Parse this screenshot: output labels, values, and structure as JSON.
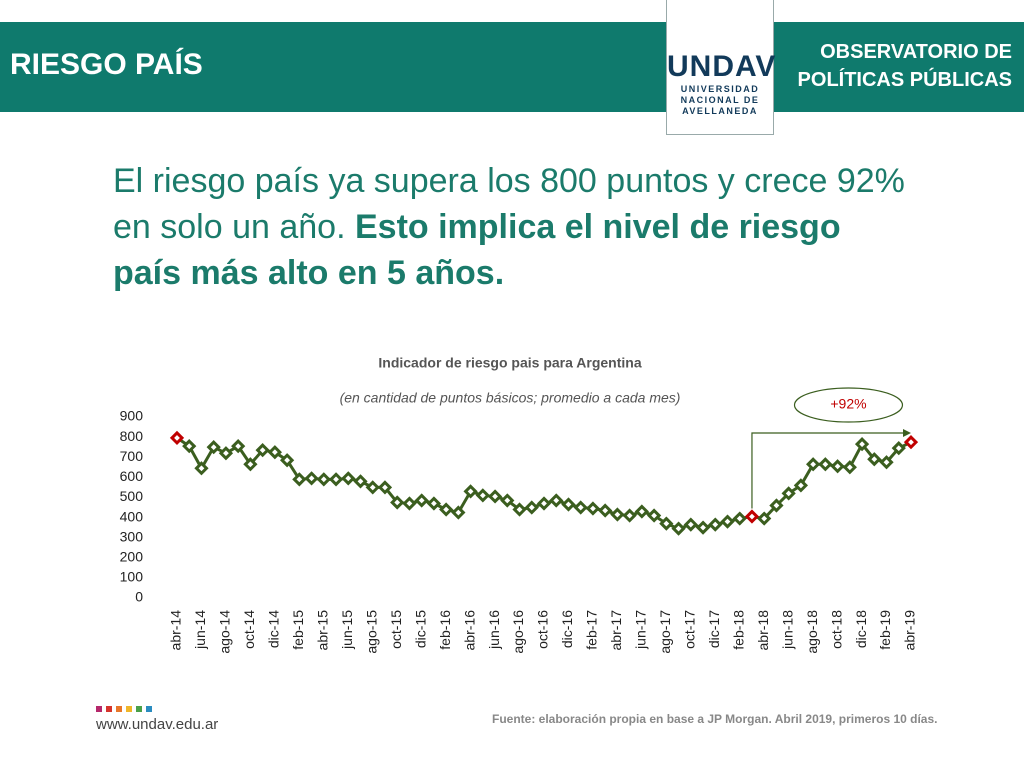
{
  "header": {
    "title": "RIESGO PAÍS",
    "org_line1": "OBSERVATORIO DE",
    "org_line2": "POLÍTICAS PÚBLICAS",
    "logo": "UNDAV",
    "logo_sub1": "UNIVERSIDAD",
    "logo_sub2": "NACIONAL DE",
    "logo_sub3": "AVELLANEDA"
  },
  "headline": {
    "normal": "El riesgo país ya supera los 800 puntos y crece 92% en solo un año.",
    "bold": "Esto implica el nivel de riesgo país más alto en 5 años."
  },
  "chart_data": {
    "type": "line",
    "title": "Indicador de riesgo pais para Argentina",
    "subtitle": "(en cantidad de puntos básicos; promedio a cada mes)",
    "categories": [
      "abr-14",
      null,
      "jun-14",
      null,
      "ago-14",
      null,
      "oct-14",
      null,
      "dic-14",
      null,
      "feb-15",
      null,
      "abr-15",
      null,
      "jun-15",
      null,
      "ago-15",
      null,
      "oct-15",
      null,
      "dic-15",
      null,
      "feb-16",
      null,
      "abr-16",
      null,
      "jun-16",
      null,
      "ago-16",
      null,
      "oct-16",
      null,
      "dic-16",
      null,
      "feb-17",
      null,
      "abr-17",
      null,
      "jun-17",
      null,
      "ago-17",
      null,
      "oct-17",
      null,
      "dic-17",
      null,
      "feb-18",
      null,
      "abr-18",
      null,
      "jun-18",
      null,
      "ago-18",
      null,
      "oct-18",
      null,
      "dic-18",
      null,
      "feb-19",
      null,
      "abr-19"
    ],
    "series": [
      {
        "name": "Riesgo país",
        "color": "#3b5e1f",
        "values": [
          796,
          755,
          645,
          750,
          720,
          755,
          665,
          735,
          725,
          685,
          590,
          595,
          590,
          590,
          595,
          580,
          550,
          550,
          475,
          470,
          485,
          470,
          440,
          425,
          530,
          510,
          505,
          485,
          440,
          450,
          470,
          485,
          465,
          450,
          445,
          435,
          415,
          410,
          430,
          410,
          370,
          345,
          365,
          350,
          365,
          380,
          395,
          405,
          395,
          460,
          520,
          560,
          665,
          665,
          655,
          650,
          765,
          690,
          675,
          745,
          775
        ]
      }
    ],
    "highlight": {
      "color": "#c00000",
      "points": [
        0,
        47,
        60
      ]
    },
    "annotation": "+92%",
    "ylim": [
      0,
      900
    ],
    "yticks": [
      0,
      100,
      200,
      300,
      400,
      500,
      600,
      700,
      800,
      900
    ],
    "grid": false
  },
  "footer": {
    "url": "www.undav.edu.ar",
    "source": "Fuente: elaboración propia en base a JP Morgan. Abril 2019, primeros 10 días."
  }
}
